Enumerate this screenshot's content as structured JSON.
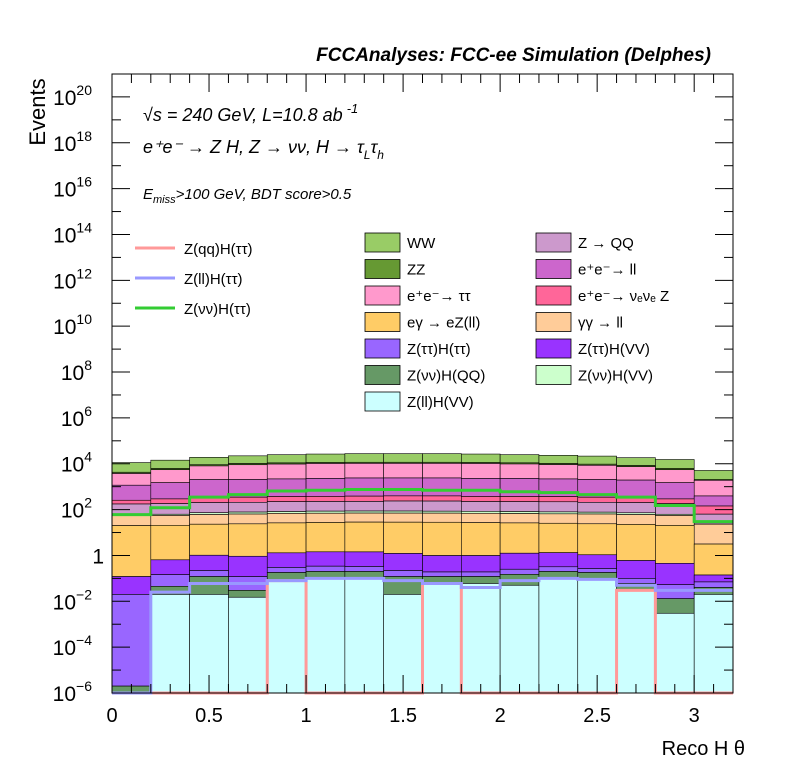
{
  "chart_data": {
    "type": "area",
    "title": "FCCAnalyses: FCC-ee Simulation (Delphes)",
    "xlabel": "Reco H θ",
    "ylabel": "Events",
    "xlim": [
      0,
      3.2
    ],
    "ylim": [
      1e-06,
      1e+21
    ],
    "yscale": "log",
    "x_ticks": [
      "0",
      "0.5",
      "1",
      "1.5",
      "2",
      "2.5",
      "3"
    ],
    "y_ticks": [
      {
        "base": "10",
        "exp": "−6",
        "value": 1e-06
      },
      {
        "base": "10",
        "exp": "−4",
        "value": 0.0001
      },
      {
        "base": "10",
        "exp": "−2",
        "value": 0.01
      },
      {
        "base": "1",
        "exp": "",
        "value": 1
      },
      {
        "base": "10",
        "exp": "2",
        "value": 100.0
      },
      {
        "base": "10",
        "exp": "4",
        "value": 10000.0
      },
      {
        "base": "10",
        "exp": "6",
        "value": 1000000.0
      },
      {
        "base": "10",
        "exp": "8",
        "value": 100000000.0
      },
      {
        "base": "10",
        "exp": "10",
        "value": 10000000000.0
      },
      {
        "base": "10",
        "exp": "12",
        "value": 1000000000000.0
      },
      {
        "base": "10",
        "exp": "14",
        "value": 100000000000000.0
      },
      {
        "base": "10",
        "exp": "16",
        "value": 1e+16
      },
      {
        "base": "10",
        "exp": "18",
        "value": 1e+18
      },
      {
        "base": "10",
        "exp": "20",
        "value": 1e+20
      }
    ],
    "annotations": {
      "energy": "√s = 240 GeV, L=10.8 ab",
      "lumi_exp": "-1",
      "process": "e⁺e⁻ → Z H, Z → νν, H → τ",
      "process_sub1": "L",
      "process_tau2": "τ",
      "process_sub2": "h",
      "cuts_prefix": "E",
      "cuts_sub": "miss",
      "cuts_rest": ">100 GeV, BDT score>0.5"
    },
    "bin_edges": [
      0,
      0.2,
      0.4,
      0.6,
      0.8,
      1.0,
      1.2,
      1.4,
      1.6,
      1.8,
      2.0,
      2.2,
      2.4,
      2.6,
      2.8,
      3.0,
      3.2
    ],
    "stack": [
      {
        "name": "Z(ll)H(VV)",
        "color": "#ccffff",
        "values": [
          1e-06,
          0.02,
          0.02,
          0.015,
          0.08,
          0.1,
          0.1,
          0.02,
          0.06,
          0.06,
          0.05,
          0.1,
          0.09,
          0.03,
          0.003,
          0.02
        ]
      },
      {
        "name": "Z(νν)H(QQ)",
        "color": "#669966",
        "values": [
          1e-06,
          0.025,
          0.1,
          0.015,
          0.1,
          0.1,
          0.1,
          0.1,
          0.06,
          0.06,
          0.1,
          0.1,
          0.09,
          0.03,
          0.01,
          0.02
        ]
      },
      {
        "name": "Z(ττ)H(ττ)",
        "color": "#9966ff",
        "values": [
          0.02,
          0.1,
          0.1,
          0.09,
          0.12,
          0.14,
          0.13,
          0.1,
          0.07,
          0.07,
          0.1,
          0.12,
          0.09,
          0.04,
          0.04,
          0.03
        ]
      },
      {
        "name": "Z(ττ)H(VV)",
        "color": "#9933ff",
        "values": [
          0.1,
          0.5,
          0.8,
          0.8,
          1.0,
          1.1,
          1.1,
          1.0,
          0.8,
          0.8,
          1.0,
          1.0,
          0.8,
          0.5,
          0.4,
          0.07
        ]
      },
      {
        "name": "eγ → eZ(ll)",
        "color": "#ffcc66",
        "values": [
          20,
          20,
          22,
          23,
          25,
          26,
          27,
          27,
          27,
          26,
          25,
          24,
          23,
          22,
          20,
          3
        ]
      },
      {
        "name": "γγ → ll",
        "color": "#ffcc99",
        "values": [
          35,
          35,
          38,
          40,
          42,
          42,
          42,
          42,
          42,
          42,
          41,
          40,
          40,
          38,
          35,
          20
        ]
      },
      {
        "name": "Z(νν)H(VV)",
        "color": "#ccffcc",
        "values": [
          0.05,
          7,
          12,
          14,
          14,
          16,
          16,
          16,
          15,
          15,
          15,
          14,
          13,
          12,
          7,
          0.05
        ]
      },
      {
        "name": "Z → QQ",
        "color": "#cc99cc",
        "values": [
          120,
          120,
          130,
          130,
          140,
          140,
          140,
          150,
          150,
          140,
          140,
          140,
          130,
          130,
          120,
          40
        ]
      },
      {
        "name": "e⁺e⁻→ νₑνₑ Z",
        "color": "#ff6699",
        "values": [
          80,
          110,
          130,
          140,
          150,
          150,
          160,
          160,
          160,
          150,
          150,
          150,
          140,
          130,
          110,
          80
        ]
      },
      {
        "name": "e⁺e⁻→ ll",
        "color": "#cc66cc",
        "values": [
          900,
          1200,
          1700,
          1700,
          1800,
          1900,
          2000,
          2000,
          2000,
          1900,
          1900,
          1800,
          1700,
          1600,
          1200,
          250
        ]
      },
      {
        "name": "e⁺e⁻→ ττ",
        "color": "#ff99cc",
        "values": [
          2600,
          4000,
          6000,
          7000,
          7500,
          8000,
          8000,
          8000,
          8000,
          8000,
          7500,
          7000,
          6500,
          5500,
          4000,
          1500
        ]
      },
      {
        "name": "ZZ",
        "color": "#669933",
        "values": [
          500,
          800,
          1000,
          1100,
          1200,
          1200,
          1200,
          1200,
          1200,
          1200,
          1200,
          1100,
          1000,
          1000,
          800,
          200
        ]
      },
      {
        "name": "WW",
        "color": "#99cc66",
        "values": [
          7000,
          8000,
          10000,
          12000,
          14000,
          15000,
          16000,
          16000,
          16000,
          15000,
          14000,
          13000,
          12000,
          10000,
          9000,
          3000
        ]
      }
    ],
    "signal": [
      {
        "name": "Z(qq)H(ττ)",
        "color": "#ff9999",
        "values": [
          1e-06,
          1e-06,
          1e-06,
          1e-06,
          0.08,
          1e-06,
          1e-06,
          1e-06,
          0.06,
          1e-06,
          1e-06,
          1e-06,
          1e-06,
          0.03,
          1e-06,
          1e-06
        ]
      },
      {
        "name": "Z(ll)H(ττ)",
        "color": "#9999ff",
        "values": [
          1e-06,
          0.025,
          0.06,
          0.06,
          0.08,
          0.1,
          0.1,
          0.08,
          0.06,
          0.04,
          0.08,
          0.1,
          0.09,
          0.05,
          0.03,
          0.03
        ]
      },
      {
        "name": "Z(νν)H(ττ)",
        "color": "#33cc33",
        "values": [
          60,
          120,
          350,
          450,
          650,
          700,
          750,
          750,
          700,
          700,
          600,
          550,
          450,
          350,
          150,
          30
        ]
      }
    ],
    "legend": {
      "signals": [
        "Z(qq)H(ττ)",
        "Z(ll)H(ττ)",
        "Z(νν)H(ττ)"
      ],
      "backgrounds_col1": [
        "WW",
        "ZZ",
        "e⁺e⁻→ ττ",
        "eγ → eZ(ll)",
        "Z(ττ)H(ττ)",
        "Z(νν)H(QQ)",
        "Z(ll)H(VV)"
      ],
      "backgrounds_col2": [
        "Z → QQ",
        "e⁺e⁻→ ll",
        "e⁺e⁻→ νₑνₑ Z",
        "γγ → ll",
        "Z(ττ)H(VV)",
        "Z(νν)H(VV)"
      ],
      "placement": "inside-top"
    }
  }
}
